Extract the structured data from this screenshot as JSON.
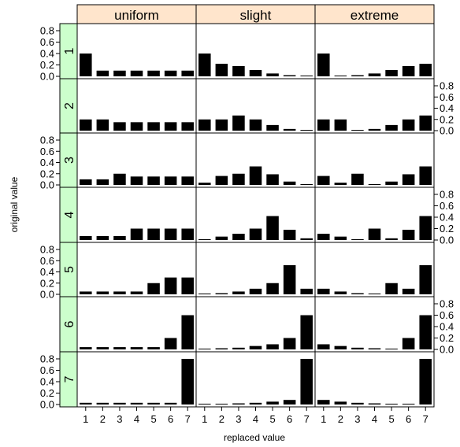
{
  "chart_data": {
    "type": "bar",
    "layout": "trellis",
    "xlabel": "replaced value",
    "ylabel": "original value",
    "column_strips": [
      "uniform",
      "slight",
      "extreme"
    ],
    "row_strips": [
      "1",
      "2",
      "3",
      "4",
      "5",
      "6",
      "7"
    ],
    "categories": [
      "1",
      "2",
      "3",
      "4",
      "5",
      "6",
      "7"
    ],
    "ylim": [
      0,
      0.8
    ],
    "yticks": [
      "0.0",
      "0.2",
      "0.4",
      "0.6",
      "0.8"
    ],
    "strip_colors": {
      "column": "#ffe5cc",
      "row": "#ccffcc"
    },
    "bar_color": "#000000",
    "panels": [
      {
        "column": "uniform",
        "row": "1",
        "values": [
          0.4,
          0.1,
          0.1,
          0.1,
          0.1,
          0.1,
          0.1
        ]
      },
      {
        "column": "slight",
        "row": "1",
        "values": [
          0.4,
          0.22,
          0.18,
          0.11,
          0.05,
          0.02,
          0.01
        ]
      },
      {
        "column": "extreme",
        "row": "1",
        "values": [
          0.4,
          0.01,
          0.02,
          0.05,
          0.11,
          0.18,
          0.22
        ]
      },
      {
        "column": "uniform",
        "row": "2",
        "values": [
          0.2,
          0.2,
          0.15,
          0.15,
          0.15,
          0.15,
          0.15
        ]
      },
      {
        "column": "slight",
        "row": "2",
        "values": [
          0.2,
          0.2,
          0.27,
          0.2,
          0.1,
          0.03,
          0.01
        ]
      },
      {
        "column": "extreme",
        "row": "2",
        "values": [
          0.2,
          0.2,
          0.01,
          0.03,
          0.1,
          0.2,
          0.27
        ]
      },
      {
        "column": "uniform",
        "row": "3",
        "values": [
          0.1,
          0.1,
          0.2,
          0.15,
          0.15,
          0.15,
          0.15
        ]
      },
      {
        "column": "slight",
        "row": "3",
        "values": [
          0.04,
          0.16,
          0.2,
          0.33,
          0.19,
          0.06,
          0.01
        ]
      },
      {
        "column": "extreme",
        "row": "3",
        "values": [
          0.16,
          0.04,
          0.2,
          0.01,
          0.06,
          0.19,
          0.33
        ]
      },
      {
        "column": "uniform",
        "row": "4",
        "values": [
          0.07,
          0.07,
          0.07,
          0.2,
          0.2,
          0.2,
          0.2
        ]
      },
      {
        "column": "slight",
        "row": "4",
        "values": [
          0.01,
          0.06,
          0.11,
          0.2,
          0.42,
          0.18,
          0.03
        ]
      },
      {
        "column": "extreme",
        "row": "4",
        "values": [
          0.11,
          0.06,
          0.01,
          0.2,
          0.03,
          0.18,
          0.42
        ]
      },
      {
        "column": "uniform",
        "row": "5",
        "values": [
          0.05,
          0.05,
          0.05,
          0.05,
          0.2,
          0.3,
          0.3
        ]
      },
      {
        "column": "slight",
        "row": "5",
        "values": [
          0.01,
          0.02,
          0.05,
          0.1,
          0.2,
          0.52,
          0.1
        ]
      },
      {
        "column": "extreme",
        "row": "5",
        "values": [
          0.1,
          0.05,
          0.02,
          0.01,
          0.2,
          0.1,
          0.52
        ]
      },
      {
        "column": "uniform",
        "row": "6",
        "values": [
          0.04,
          0.04,
          0.04,
          0.04,
          0.04,
          0.2,
          0.6
        ]
      },
      {
        "column": "slight",
        "row": "6",
        "values": [
          0.01,
          0.02,
          0.03,
          0.06,
          0.09,
          0.2,
          0.6
        ]
      },
      {
        "column": "extreme",
        "row": "6",
        "values": [
          0.09,
          0.06,
          0.03,
          0.02,
          0.01,
          0.2,
          0.6
        ]
      },
      {
        "column": "uniform",
        "row": "7",
        "values": [
          0.03,
          0.03,
          0.03,
          0.03,
          0.03,
          0.03,
          0.8
        ]
      },
      {
        "column": "slight",
        "row": "7",
        "values": [
          0.01,
          0.01,
          0.02,
          0.03,
          0.05,
          0.08,
          0.8
        ]
      },
      {
        "column": "extreme",
        "row": "7",
        "values": [
          0.08,
          0.05,
          0.03,
          0.02,
          0.01,
          0.01,
          0.8
        ]
      }
    ]
  }
}
